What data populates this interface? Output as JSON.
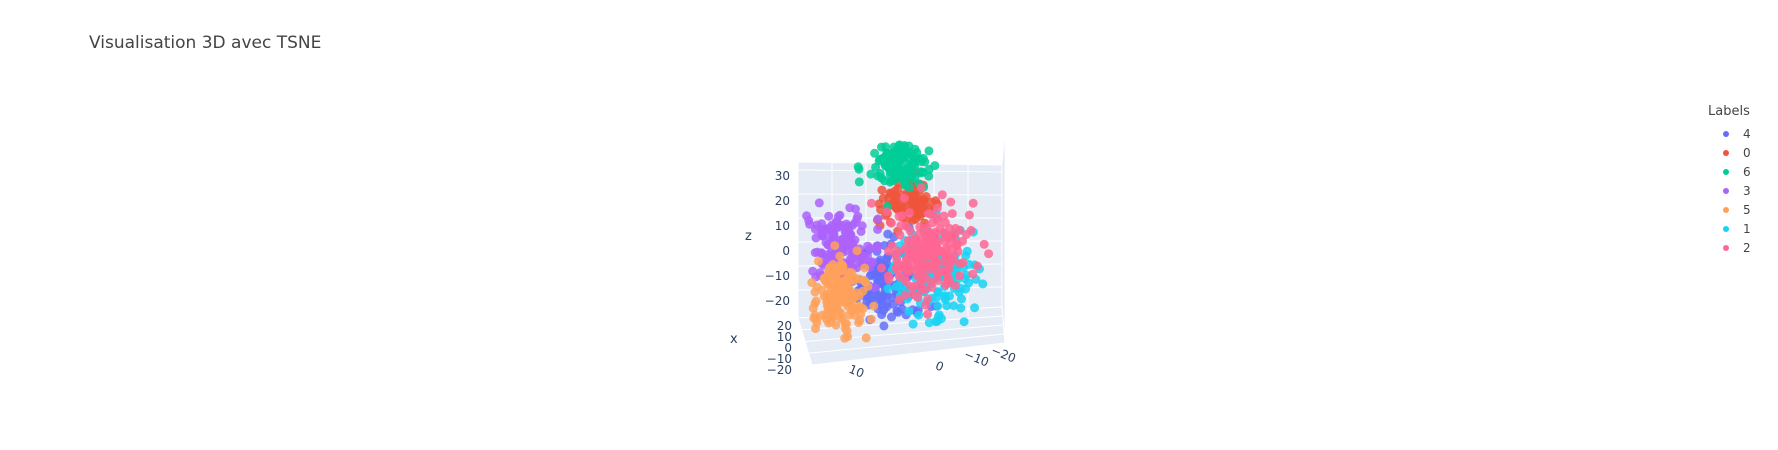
{
  "chart_data": {
    "type": "scatter",
    "title": "Visualisation 3D avec TSNE",
    "xlabel": "x",
    "ylabel": "",
    "zlabel": "z",
    "legend_title": "Labels",
    "legend_position": "right",
    "z_ticks": [
      "30",
      "20",
      "10",
      "0",
      "−10",
      "−20"
    ],
    "x_ticks": [
      "20",
      "10",
      "0",
      "−10",
      "−20"
    ],
    "y_ticks": [
      "10",
      "0",
      "−10",
      "−20"
    ],
    "series": [
      {
        "name": "4",
        "color": "#636efa",
        "center": [
          -5,
          0,
          -12
        ],
        "spread": [
          7,
          6,
          7
        ],
        "count": 150
      },
      {
        "name": "0",
        "color": "#ef553b",
        "center": [
          0,
          5,
          18
        ],
        "spread": [
          5,
          4,
          4
        ],
        "count": 90
      },
      {
        "name": "6",
        "color": "#00cc96",
        "center": [
          0,
          0,
          30
        ],
        "spread": [
          5,
          4,
          4
        ],
        "count": 120
      },
      {
        "name": "3",
        "color": "#ab63fa",
        "center": [
          -18,
          -10,
          -2
        ],
        "spread": [
          6,
          5,
          6
        ],
        "count": 170
      },
      {
        "name": "5",
        "color": "#ffa15a",
        "center": [
          -20,
          -6,
          -18
        ],
        "spread": [
          5,
          5,
          6
        ],
        "count": 170
      },
      {
        "name": "1",
        "color": "#19d3f3",
        "center": [
          10,
          10,
          -8
        ],
        "spread": [
          7,
          6,
          8
        ],
        "count": 150
      },
      {
        "name": "2",
        "color": "#ff6692",
        "center": [
          6,
          10,
          2
        ],
        "spread": [
          7,
          6,
          8
        ],
        "count": 190
      }
    ]
  }
}
